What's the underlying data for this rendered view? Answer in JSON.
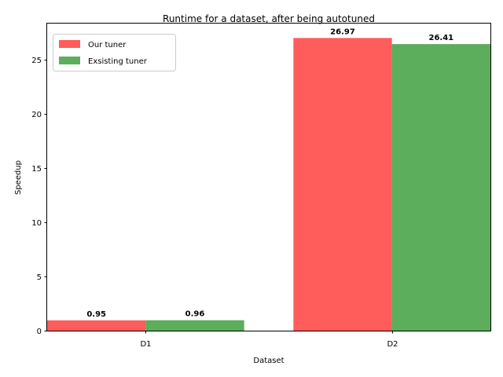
{
  "chart_data": {
    "type": "bar",
    "title": "Runtime for a dataset, after being autotuned",
    "xlabel": "Dataset",
    "ylabel": "Speedup",
    "categories": [
      "D1",
      "D2"
    ],
    "series": [
      {
        "name": "Our tuner",
        "values": [
          0.95,
          26.97
        ],
        "labels": [
          "0.95",
          "26.97"
        ],
        "color": "#ff3333"
      },
      {
        "name": "Exsisting tuner",
        "values": [
          0.96,
          26.41
        ],
        "labels": [
          "0.96",
          "26.41"
        ],
        "color": "#339933"
      }
    ],
    "ylim": [
      0,
      28.3
    ],
    "yticks": [
      0,
      5,
      10,
      15,
      20,
      25
    ],
    "grid": false,
    "legend": "top-left"
  }
}
